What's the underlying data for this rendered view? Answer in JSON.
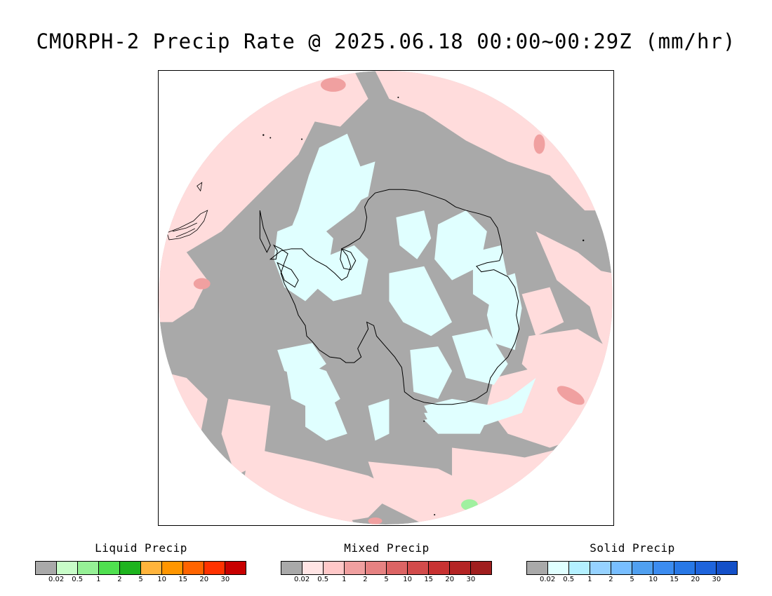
{
  "title": "CMORPH-2 Precip Rate @ 2025.06.18 00:00~00:29Z (mm/hr)",
  "map": {
    "projection": "south-polar-stereographic",
    "colors": {
      "no_precip": "#a9a9a9",
      "mixed_light": "#ffdcdc",
      "mixed_moderate": "#f0a0a0",
      "solid_light": "#e0ffff",
      "liquid_light": "#a0f0a0",
      "coastline": "#000000",
      "outside": "#ffffff"
    }
  },
  "legends": [
    {
      "title": "Liquid Precip",
      "colors": [
        "#a9a9a9",
        "#c8fcc8",
        "#96f096",
        "#50e050",
        "#1eb41e",
        "#ffb43c",
        "#ff9600",
        "#ff6400",
        "#ff3200",
        "#c80000"
      ],
      "ticks": [
        "0.02",
        "0.5",
        "1",
        "2",
        "5",
        "10",
        "15",
        "20",
        "30"
      ]
    },
    {
      "title": "Mixed Precip",
      "colors": [
        "#a9a9a9",
        "#ffe4e4",
        "#ffc8c8",
        "#f0a0a0",
        "#e68282",
        "#dc6464",
        "#d24b4b",
        "#c83232",
        "#b42424",
        "#a01e1e"
      ],
      "ticks": [
        "0.02",
        "0.5",
        "1",
        "2",
        "5",
        "10",
        "15",
        "20",
        "30"
      ]
    },
    {
      "title": "Solid Precip",
      "colors": [
        "#a9a9a9",
        "#e0ffff",
        "#b4f0ff",
        "#96d2ff",
        "#78beff",
        "#50a0f0",
        "#3c8cf0",
        "#2878e6",
        "#1e64dc",
        "#1450c8"
      ],
      "ticks": [
        "0.02",
        "0.5",
        "1",
        "2",
        "5",
        "10",
        "15",
        "20",
        "30"
      ]
    }
  ]
}
